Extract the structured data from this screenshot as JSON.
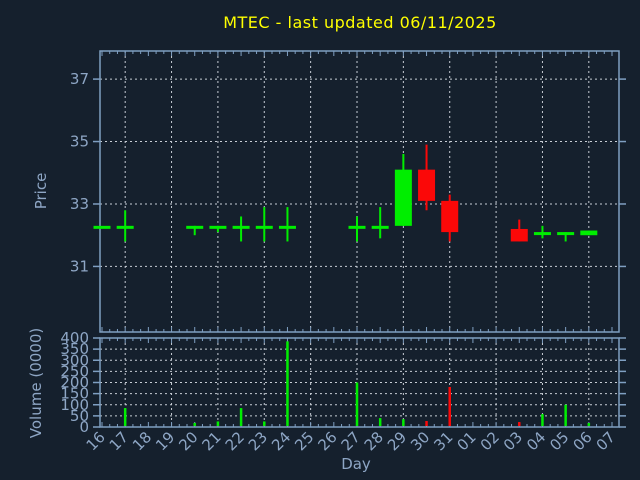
{
  "title": {
    "text": "MTEC - last updated 06/11/2025"
  },
  "colors": {
    "background": "#15202d",
    "title": "#ffff00",
    "axis": "#7f9fc2",
    "grid": "#c8ced6",
    "tick_label": "#8ea6c5",
    "up": "#00ee00",
    "down": "#fb0808"
  },
  "chart_data": [
    {
      "type": "candlestick",
      "title": "MTEC - last updated 06/11/2025",
      "xlabel": "Day",
      "ylabel": "Price",
      "x_categories": [
        "16",
        "17",
        "18",
        "19",
        "20",
        "21",
        "22",
        "23",
        "24",
        "25",
        "26",
        "27",
        "28",
        "29",
        "30",
        "31",
        "01",
        "02",
        "03",
        "04",
        "05",
        "06",
        "07"
      ],
      "ylim": [
        28.9,
        37.9
      ],
      "yticks": [
        31,
        33,
        35,
        37
      ],
      "grid": true,
      "up_color": "#00ee00",
      "down_color": "#fb0808",
      "candles": [
        {
          "day": "16",
          "open": 32.3,
          "high": 32.3,
          "low": 32.3,
          "close": 32.3
        },
        {
          "day": "17",
          "open": 32.3,
          "high": 32.8,
          "low": 31.8,
          "close": 32.3
        },
        {
          "day": "20",
          "open": 32.3,
          "high": 32.3,
          "low": 32.0,
          "close": 32.3
        },
        {
          "day": "21",
          "open": 32.3,
          "high": 32.3,
          "low": 32.1,
          "close": 32.3
        },
        {
          "day": "22",
          "open": 32.3,
          "high": 32.6,
          "low": 31.8,
          "close": 32.3
        },
        {
          "day": "23",
          "open": 32.3,
          "high": 32.9,
          "low": 31.8,
          "close": 32.3
        },
        {
          "day": "24",
          "open": 32.3,
          "high": 32.9,
          "low": 31.8,
          "close": 32.3
        },
        {
          "day": "27",
          "open": 32.3,
          "high": 32.6,
          "low": 31.8,
          "close": 32.3
        },
        {
          "day": "28",
          "open": 32.3,
          "high": 32.9,
          "low": 31.9,
          "close": 32.3
        },
        {
          "day": "29",
          "open": 32.3,
          "high": 34.6,
          "low": 32.3,
          "close": 34.1
        },
        {
          "day": "30",
          "open": 34.1,
          "high": 34.9,
          "low": 32.8,
          "close": 33.1
        },
        {
          "day": "31",
          "open": 33.1,
          "high": 33.3,
          "low": 31.8,
          "close": 32.1
        },
        {
          "day": "03",
          "open": 32.2,
          "high": 32.5,
          "low": 31.8,
          "close": 31.8
        },
        {
          "day": "04",
          "open": 32.1,
          "high": 32.3,
          "low": 31.9,
          "close": 32.1
        },
        {
          "day": "05",
          "open": 32.1,
          "high": 32.1,
          "low": 31.8,
          "close": 32.1
        },
        {
          "day": "06",
          "open": 32.0,
          "high": 32.15,
          "low": 32.0,
          "close": 32.15
        }
      ]
    },
    {
      "type": "bar",
      "ylabel": "Volume (0000)",
      "ylim": [
        0,
        400
      ],
      "yticks": [
        0,
        50,
        100,
        150,
        200,
        250,
        300,
        350,
        400
      ],
      "grid": true,
      "bars": [
        {
          "day": "17",
          "value": 85,
          "direction": "up"
        },
        {
          "day": "20",
          "value": 18,
          "direction": "up"
        },
        {
          "day": "21",
          "value": 25,
          "direction": "up"
        },
        {
          "day": "22",
          "value": 85,
          "direction": "up"
        },
        {
          "day": "23",
          "value": 25,
          "direction": "up"
        },
        {
          "day": "24",
          "value": 385,
          "direction": "up"
        },
        {
          "day": "27",
          "value": 200,
          "direction": "up"
        },
        {
          "day": "28",
          "value": 40,
          "direction": "up"
        },
        {
          "day": "29",
          "value": 35,
          "direction": "up"
        },
        {
          "day": "30",
          "value": 27,
          "direction": "down"
        },
        {
          "day": "31",
          "value": 180,
          "direction": "down"
        },
        {
          "day": "03",
          "value": 22,
          "direction": "down"
        },
        {
          "day": "04",
          "value": 58,
          "direction": "up"
        },
        {
          "day": "05",
          "value": 100,
          "direction": "up"
        },
        {
          "day": "06",
          "value": 18,
          "direction": "up"
        }
      ]
    }
  ]
}
